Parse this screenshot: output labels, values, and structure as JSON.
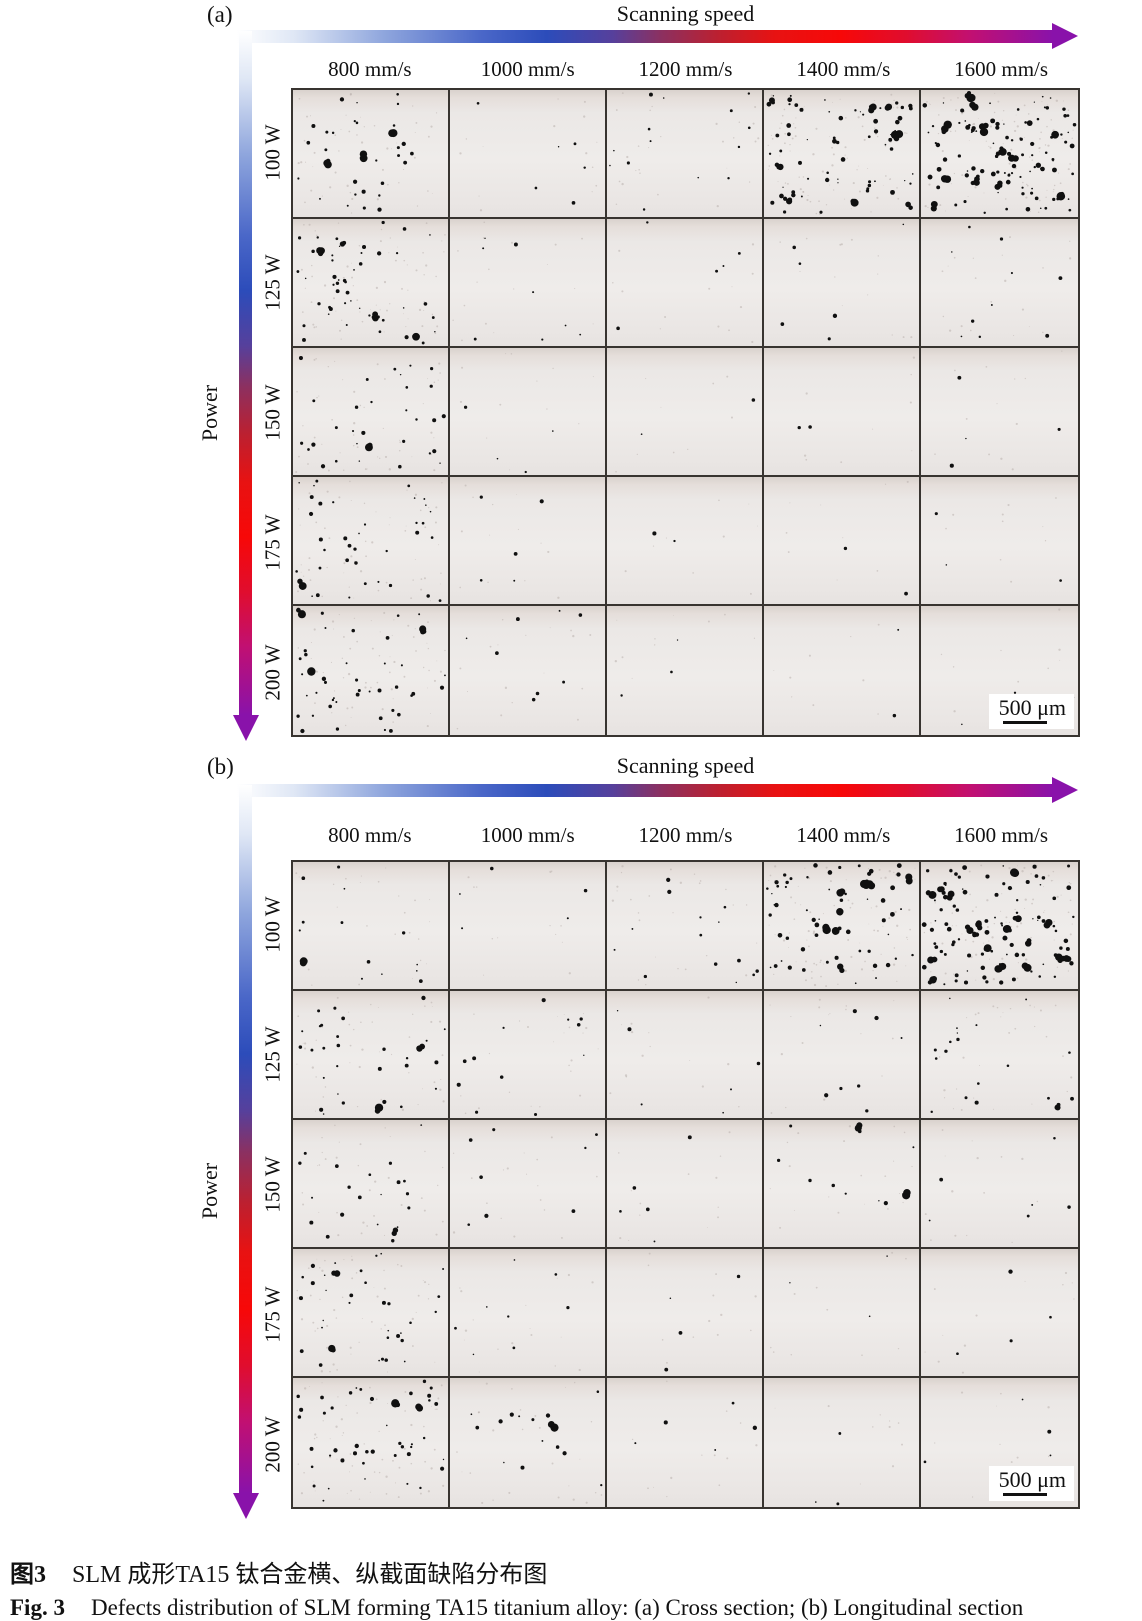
{
  "figure": {
    "caption_zh_label": "图3",
    "caption_zh": "SLM 成形TA15 钛合金横、纵截面缺陷分布图",
    "caption_en_label": "Fig. 3",
    "caption_en": "Defects distribution of SLM forming TA15 titanium alloy: (a) Cross section; (b) Longitudinal section"
  },
  "axes": {
    "x_title": "Scanning speed",
    "y_title": "Power",
    "speeds": [
      "800 mm/s",
      "1000 mm/s",
      "1200 mm/s",
      "1400 mm/s",
      "1600 mm/s"
    ],
    "powers": [
      "100 W",
      "125 W",
      "150 W",
      "175 W",
      "200 W"
    ]
  },
  "scale_bar_label": "500 μm",
  "colors": {
    "arrow_gradient": [
      "#ffffff",
      "#dfe7f5",
      "#8fa6dd",
      "#4a67c8",
      "#2c4cba",
      "#56409c",
      "#8c3060",
      "#bc2030",
      "#e81212",
      "#f70808",
      "#e00d2e",
      "#c11072",
      "#8912aa"
    ],
    "arrow_head": "#8912aa",
    "grid_line": "#383430",
    "defect": "#101010",
    "micrograph_bg": "#edeae8"
  },
  "panels": [
    {
      "tag": "(a)",
      "section": "Cross section",
      "defect_counts": [
        [
          30,
          6,
          14,
          62,
          95
        ],
        [
          46,
          8,
          5,
          6,
          10
        ],
        [
          30,
          4,
          2,
          2,
          4
        ],
        [
          36,
          5,
          2,
          2,
          3
        ],
        [
          40,
          8,
          3,
          2,
          3
        ]
      ],
      "big_blobs": [
        [
          3,
          0,
          0,
          9,
          16
        ],
        [
          4,
          0,
          0,
          0,
          0
        ],
        [
          1,
          0,
          0,
          0,
          0
        ],
        [
          1,
          0,
          0,
          0,
          0
        ],
        [
          3,
          0,
          0,
          0,
          0
        ]
      ]
    },
    {
      "tag": "(b)",
      "section": "Longitudinal section",
      "defect_counts": [
        [
          13,
          5,
          14,
          55,
          88
        ],
        [
          28,
          12,
          6,
          8,
          18
        ],
        [
          20,
          8,
          5,
          10,
          6
        ],
        [
          32,
          8,
          4,
          3,
          4
        ],
        [
          42,
          14,
          5,
          3,
          4
        ]
      ],
      "big_blobs": [
        [
          1,
          0,
          0,
          8,
          18
        ],
        [
          2,
          0,
          0,
          0,
          1
        ],
        [
          1,
          0,
          0,
          2,
          0
        ],
        [
          2,
          0,
          0,
          0,
          0
        ],
        [
          2,
          1,
          0,
          0,
          0
        ]
      ]
    }
  ]
}
